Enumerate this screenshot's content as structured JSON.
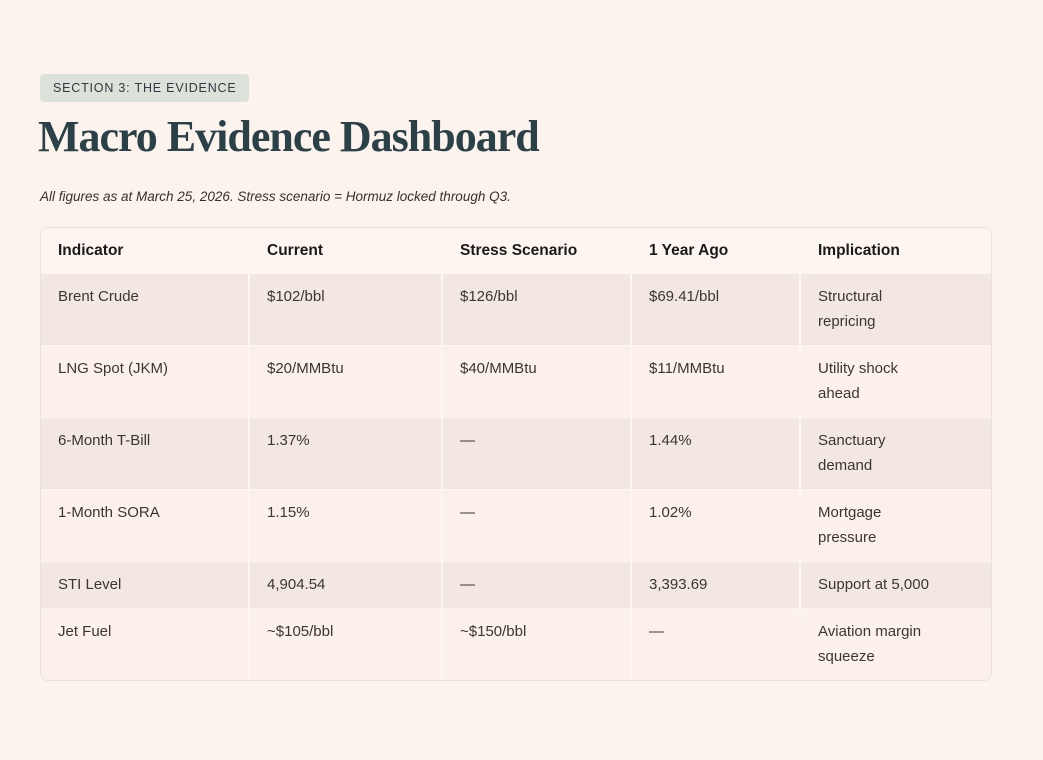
{
  "page": {
    "badge": "SECTION 3: THE EVIDENCE",
    "title": "Macro Evidence Dashboard",
    "subtitle": "All figures as at March 25, 2026. Stress scenario = Hormuz locked through Q3."
  },
  "table": {
    "columns": [
      "Indicator",
      "Current",
      "Stress Scenario",
      "1 Year Ago",
      "Implication"
    ],
    "rows": [
      [
        "Brent Crude",
        "$102/bbl",
        "$126/bbl",
        "$69.41/bbl",
        "Structural\nrepricing"
      ],
      [
        "LNG Spot (JKM)",
        "$20/MMBtu",
        "$40/MMBtu",
        "$11/MMBtu",
        "Utility shock\nahead"
      ],
      [
        "6-Month T-Bill",
        "1.37%",
        "—",
        "1.44%",
        "Sanctuary\ndemand"
      ],
      [
        "1-Month SORA",
        "1.15%",
        "—",
        "1.02%",
        "Mortgage\npressure"
      ],
      [
        "STI Level",
        "4,904.54",
        "—",
        "3,393.69",
        "Support at 5,000"
      ],
      [
        "Jet Fuel",
        "~$105/bbl",
        "~$150/bbl",
        "—",
        "Aviation margin\nsqueeze"
      ]
    ]
  },
  "colors": {
    "page_background": "#fcf3ed",
    "badge_background": "#dce2d9",
    "badge_text": "#2d3a41",
    "title_text": "#2b4148",
    "table_border": "#e8e2dc",
    "table_gap_background": "#fdf6f0",
    "row_dark_background": "#f2e8e1",
    "row_light_background": "#fbf1ea",
    "header_text": "#1a1a1a",
    "body_text": "#3a3633"
  }
}
